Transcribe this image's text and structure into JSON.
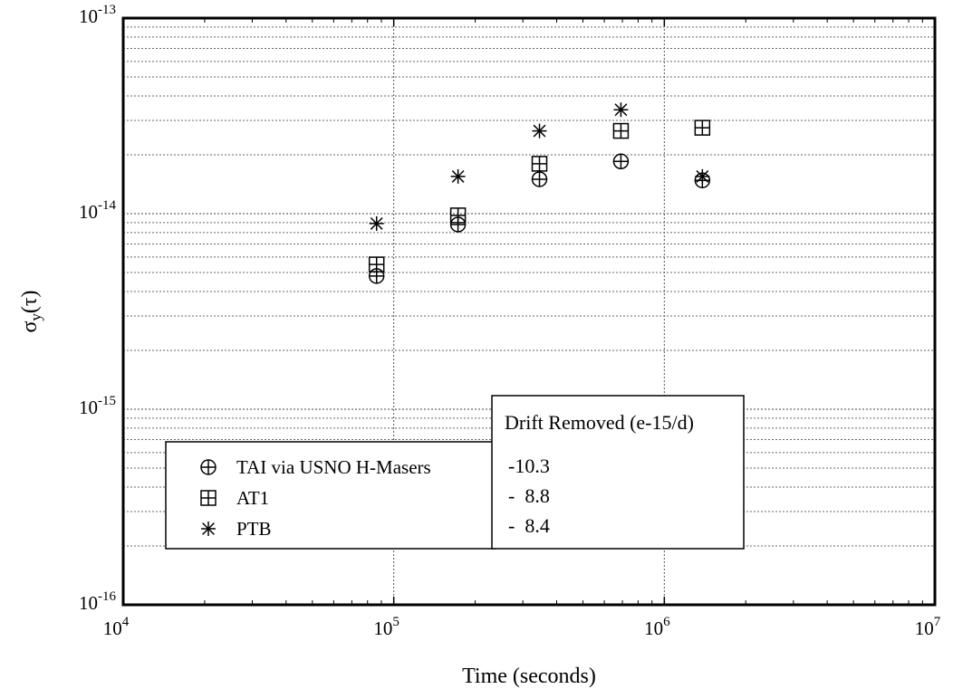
{
  "chart_data": {
    "type": "scatter",
    "x_scale": "log",
    "y_scale": "log",
    "xlim": [
      10000,
      10000000
    ],
    "ylim": [
      1e-16,
      1e-13
    ],
    "xlabel": "Time (seconds)",
    "ylabel_base": "σ",
    "ylabel_sub": "y",
    "ylabel_tail": "(τ)",
    "grid": true,
    "x_ticks": [
      {
        "value": 10000,
        "base": "10",
        "exp": "4"
      },
      {
        "value": 100000,
        "base": "10",
        "exp": "5"
      },
      {
        "value": 1000000,
        "base": "10",
        "exp": "6"
      },
      {
        "value": 10000000,
        "base": "10",
        "exp": "7"
      }
    ],
    "y_ticks": [
      {
        "value": 1e-13,
        "base": "10",
        "exp": "-13"
      },
      {
        "value": 1e-14,
        "base": "10",
        "exp": "-14"
      },
      {
        "value": 1e-15,
        "base": "10",
        "exp": "-15"
      },
      {
        "value": 1e-16,
        "base": "10",
        "exp": "-16"
      }
    ],
    "series": [
      {
        "name": "TAI via USNO H-Masers",
        "marker": "circle-plus",
        "points": [
          {
            "x": 86400,
            "y": 4.8e-15
          },
          {
            "x": 172800,
            "y": 8.8e-15
          },
          {
            "x": 345600,
            "y": 1.5e-14
          },
          {
            "x": 691200,
            "y": 1.85e-14
          },
          {
            "x": 1382400,
            "y": 1.48e-14
          }
        ]
      },
      {
        "name": "AT1",
        "marker": "square-plus",
        "points": [
          {
            "x": 86400,
            "y": 5.5e-15
          },
          {
            "x": 172800,
            "y": 9.8e-15
          },
          {
            "x": 345600,
            "y": 1.8e-14
          },
          {
            "x": 691200,
            "y": 2.65e-14
          },
          {
            "x": 1382400,
            "y": 2.75e-14
          }
        ]
      },
      {
        "name": "PTB",
        "marker": "asterisk",
        "points": [
          {
            "x": 86400,
            "y": 8.9e-15
          },
          {
            "x": 172800,
            "y": 1.55e-14
          },
          {
            "x": 345600,
            "y": 2.65e-14
          },
          {
            "x": 691200,
            "y": 3.4e-14
          },
          {
            "x": 1382400,
            "y": 1.55e-14
          }
        ]
      }
    ],
    "legend": {
      "placement": "bottom-left",
      "entries": [
        "TAI via USNO H-Masers",
        "AT1",
        "PTB"
      ]
    },
    "annotation_box": {
      "title": "Drift Removed (e-15/d)",
      "values": [
        "-10.3",
        "-  8.8",
        "-  8.4"
      ]
    }
  }
}
